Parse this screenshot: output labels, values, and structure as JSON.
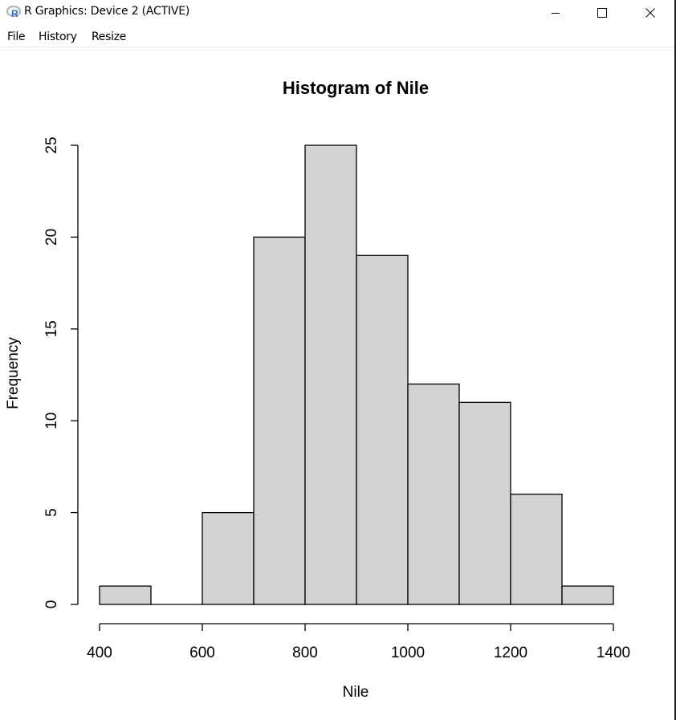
{
  "window": {
    "title": "R Graphics: Device 2 (ACTIVE)",
    "icon": "r-logo-icon",
    "controls": [
      "minimize-icon",
      "maximize-icon",
      "close-icon"
    ]
  },
  "menu": {
    "items": [
      {
        "label": "File"
      },
      {
        "label": "History"
      },
      {
        "label": "Resize"
      }
    ]
  },
  "colors": {
    "bar_fill": "#d3d3d3",
    "bar_stroke": "#000000",
    "text": "#000000",
    "r_logo_blue": "#276dc3",
    "r_logo_ring": "#b8b8c0"
  },
  "chart_data": {
    "type": "bar",
    "title": "Histogram of Nile",
    "xlabel": "Nile",
    "ylabel": "Frequency",
    "bin_edges": [
      400,
      500,
      600,
      700,
      800,
      900,
      1000,
      1100,
      1200,
      1300,
      1400
    ],
    "values": [
      1,
      0,
      5,
      20,
      25,
      19,
      12,
      11,
      6,
      1
    ],
    "xlim": [
      400,
      1400
    ],
    "ylim": [
      0,
      25
    ],
    "x_ticks": [
      400,
      600,
      800,
      1000,
      1200,
      1400
    ],
    "y_ticks": [
      0,
      5,
      10,
      15,
      20,
      25
    ],
    "grid": false,
    "legend": "none"
  }
}
